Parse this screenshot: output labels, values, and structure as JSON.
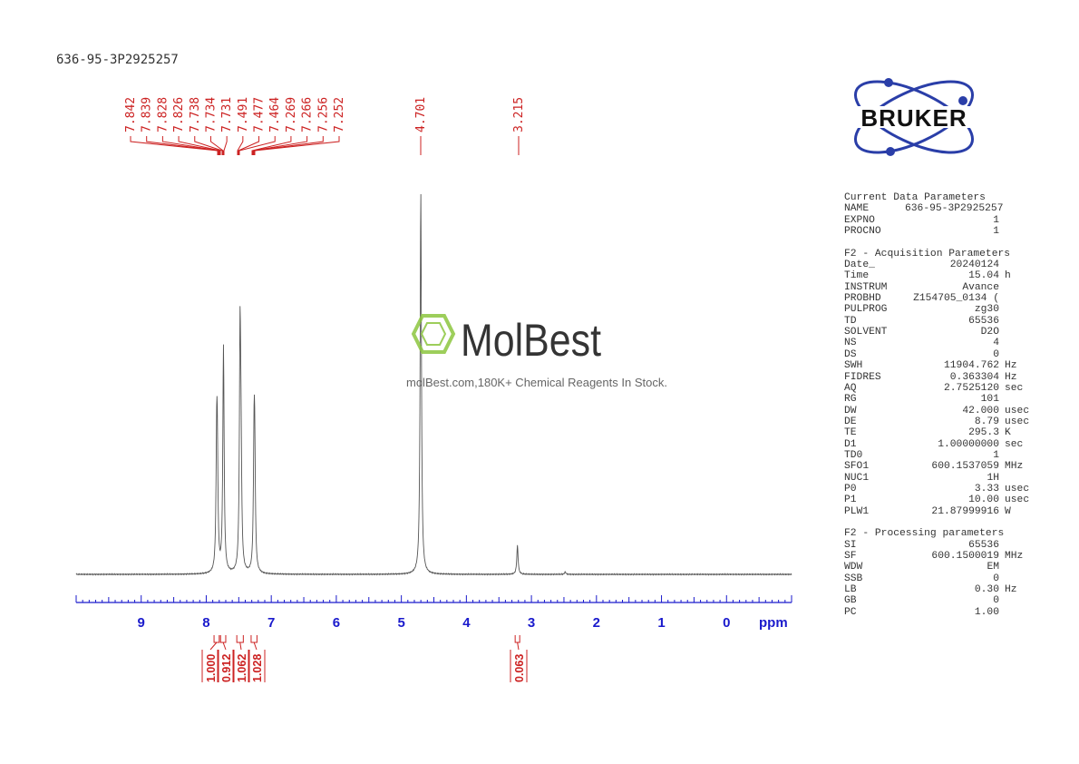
{
  "sample_id": "636-95-3P2925257",
  "watermark": {
    "brand": "MolBest",
    "tagline": "molBest.com,180K+ Chemical Reagents In Stock."
  },
  "logo": {
    "text": "BRUKER"
  },
  "colors": {
    "spectrum": "#555555",
    "peak_label": "#cc2222",
    "axis": "#1a1acc",
    "integral": "#cc2222"
  },
  "chart_data": {
    "type": "line",
    "title": "636-95-3P2925257",
    "xlabel": "ppm",
    "xlim": [
      10.0,
      -1.0
    ],
    "x_reversed": true,
    "xticks": [
      9,
      8,
      7,
      6,
      5,
      4,
      3,
      2,
      1,
      0
    ],
    "peak_labels_left": [
      "7.842",
      "7.839",
      "7.828",
      "7.826",
      "7.738",
      "7.734",
      "7.731",
      "7.491",
      "7.477",
      "7.464",
      "7.269",
      "7.266",
      "7.256",
      "7.252"
    ],
    "peak_labels_right": [
      "4.701",
      "3.215"
    ],
    "peaks": [
      {
        "ppm": 7.84,
        "height": 0.25
      },
      {
        "ppm": 7.83,
        "height": 0.25
      },
      {
        "ppm": 7.735,
        "height": 0.55
      },
      {
        "ppm": 7.48,
        "height": 0.56
      },
      {
        "ppm": 7.465,
        "height": 0.23
      },
      {
        "ppm": 7.265,
        "height": 0.26
      },
      {
        "ppm": 7.255,
        "height": 0.25
      },
      {
        "ppm": 4.701,
        "height": 0.93
      },
      {
        "ppm": 3.215,
        "height": 0.07
      },
      {
        "ppm": 2.48,
        "height": 0.006
      }
    ],
    "integrals": [
      {
        "value": "1.000",
        "from": 7.88,
        "to": 7.8
      },
      {
        "value": "0.912",
        "from": 7.78,
        "to": 7.7
      },
      {
        "value": "1.062",
        "from": 7.53,
        "to": 7.43
      },
      {
        "value": "1.028",
        "from": 7.31,
        "to": 7.22
      },
      {
        "value": "0.063",
        "from": 3.25,
        "to": 3.18
      }
    ]
  },
  "parameters": {
    "current": {
      "header": "Current Data Parameters",
      "rows": [
        {
          "name": "NAME",
          "value": "636-95-3P2925257",
          "unit": ""
        },
        {
          "name": "EXPNO",
          "value": "1",
          "unit": ""
        },
        {
          "name": "PROCNO",
          "value": "1",
          "unit": ""
        }
      ]
    },
    "acquisition": {
      "header": "F2 - Acquisition Parameters",
      "rows": [
        {
          "name": "Date_",
          "value": "20240124",
          "unit": ""
        },
        {
          "name": "Time",
          "value": "15.04",
          "unit": "h"
        },
        {
          "name": "INSTRUM",
          "value": "Avance",
          "unit": ""
        },
        {
          "name": "PROBHD",
          "value": "Z154705_0134 (",
          "unit": ""
        },
        {
          "name": "PULPROG",
          "value": "zg30",
          "unit": ""
        },
        {
          "name": "TD",
          "value": "65536",
          "unit": ""
        },
        {
          "name": "SOLVENT",
          "value": "D2O",
          "unit": ""
        },
        {
          "name": "NS",
          "value": "4",
          "unit": ""
        },
        {
          "name": "DS",
          "value": "0",
          "unit": ""
        },
        {
          "name": "SWH",
          "value": "11904.762",
          "unit": "Hz"
        },
        {
          "name": "FIDRES",
          "value": "0.363304",
          "unit": "Hz"
        },
        {
          "name": "AQ",
          "value": "2.7525120",
          "unit": "sec"
        },
        {
          "name": "RG",
          "value": "101",
          "unit": ""
        },
        {
          "name": "DW",
          "value": "42.000",
          "unit": "usec"
        },
        {
          "name": "DE",
          "value": "8.79",
          "unit": "usec"
        },
        {
          "name": "TE",
          "value": "295.3",
          "unit": "K"
        },
        {
          "name": "D1",
          "value": "1.00000000",
          "unit": "sec"
        },
        {
          "name": "TD0",
          "value": "1",
          "unit": ""
        },
        {
          "name": "SFO1",
          "value": "600.1537059",
          "unit": "MHz"
        },
        {
          "name": "NUC1",
          "value": "1H",
          "unit": ""
        },
        {
          "name": "P0",
          "value": "3.33",
          "unit": "usec"
        },
        {
          "name": "P1",
          "value": "10.00",
          "unit": "usec"
        },
        {
          "name": "PLW1",
          "value": "21.87999916",
          "unit": "W"
        }
      ]
    },
    "processing": {
      "header": "F2 - Processing parameters",
      "rows": [
        {
          "name": "SI",
          "value": "65536",
          "unit": ""
        },
        {
          "name": "SF",
          "value": "600.1500019",
          "unit": "MHz"
        },
        {
          "name": "WDW",
          "value": "EM",
          "unit": ""
        },
        {
          "name": "SSB",
          "value": "0",
          "unit": ""
        },
        {
          "name": "LB",
          "value": "0.30",
          "unit": "Hz"
        },
        {
          "name": "GB",
          "value": "0",
          "unit": ""
        },
        {
          "name": "PC",
          "value": "1.00",
          "unit": ""
        }
      ]
    }
  }
}
